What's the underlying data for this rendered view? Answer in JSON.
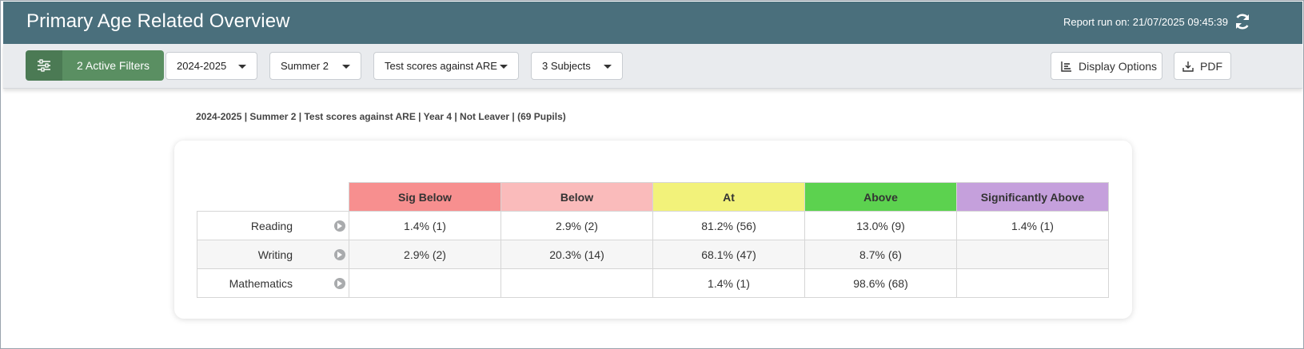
{
  "header": {
    "title": "Primary Age Related Overview",
    "report_run": "Report run on: 21/07/2025 09:45:39",
    "refresh_icon": "refresh-icon"
  },
  "toolbar": {
    "filters_label": "2 Active Filters",
    "filters_icon": "sliders-icon",
    "year": "2024-2025",
    "term": "Summer 2",
    "mode": "Test scores against ARE",
    "subjects": "3 Subjects",
    "display_options_label": "Display Options",
    "display_options_icon": "bar-chart-icon",
    "pdf_label": "PDF",
    "pdf_icon": "download-icon"
  },
  "summary": "2024-2025 | Summer 2 | Test scores against ARE | Year 4 | Not Leaver | (69 Pupils)",
  "table": {
    "columns": [
      {
        "label": "Sig Below",
        "color": "#f78f8f"
      },
      {
        "label": "Below",
        "color": "#fabbbb"
      },
      {
        "label": "At",
        "color": "#f2f27a"
      },
      {
        "label": "Above",
        "color": "#5cd24f"
      },
      {
        "label": "Significantly Above",
        "color": "#c5a0dc"
      }
    ],
    "rows": [
      {
        "label": "Reading",
        "cells": [
          "1.4% (1)",
          "2.9% (2)",
          "81.2% (56)",
          "13.0% (9)",
          "1.4% (1)"
        ]
      },
      {
        "label": "Writing",
        "cells": [
          "2.9% (2)",
          "20.3% (14)",
          "68.1% (47)",
          "8.7% (6)",
          ""
        ]
      },
      {
        "label": "Mathematics",
        "cells": [
          "",
          "",
          "1.4% (1)",
          "98.6% (68)",
          ""
        ]
      }
    ]
  }
}
